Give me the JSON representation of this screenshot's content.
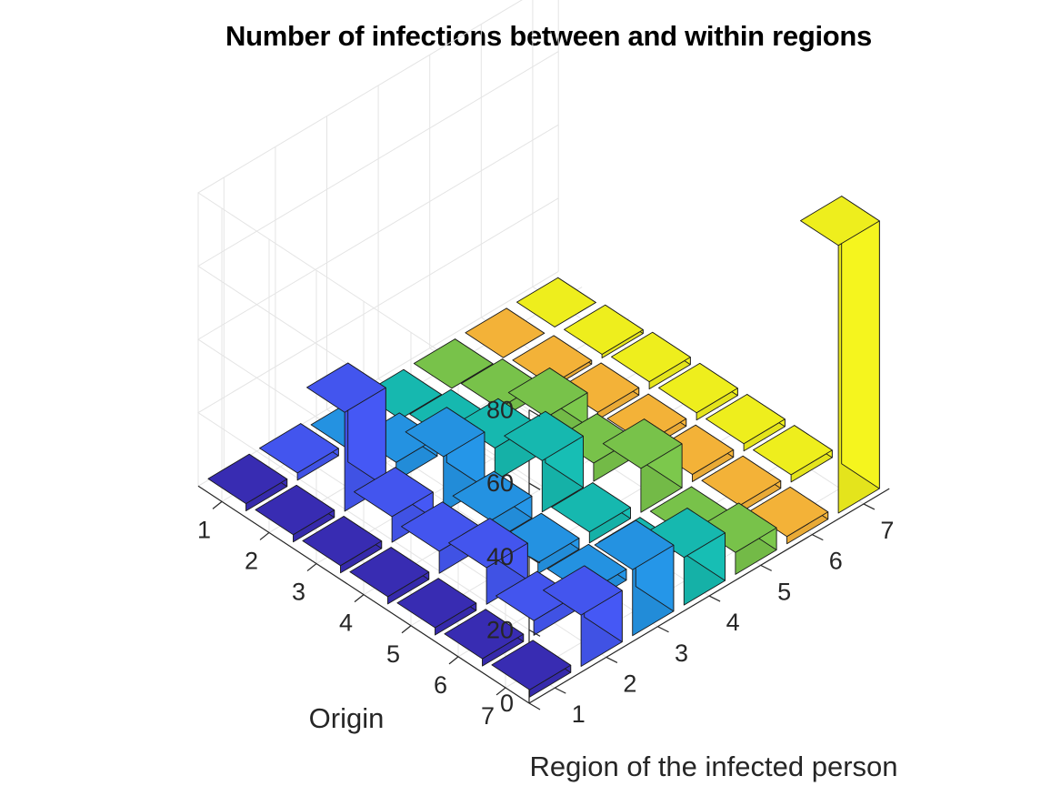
{
  "chart_data": {
    "type": "bar3",
    "title": "Number of infections between and within regions",
    "xlabel": "Region of the infected person",
    "ylabel": "Origin",
    "zlabel": "",
    "x_ticks": [
      "1",
      "2",
      "3",
      "4",
      "5",
      "6",
      "7"
    ],
    "y_ticks": [
      "1",
      "2",
      "3",
      "4",
      "5",
      "6",
      "7"
    ],
    "z_ticks": [
      "0",
      "20",
      "40",
      "60",
      "80"
    ],
    "zlim": [
      0,
      80
    ],
    "grid": true,
    "column_colors": [
      "#3A2DB8",
      "#4558F5",
      "#2596E8",
      "#17BEB4",
      "#7CC84C",
      "#FAB73A",
      "#F5F51E"
    ],
    "values": [
      [
        2,
        2,
        0,
        0,
        0,
        0,
        0
      ],
      [
        2,
        27,
        5,
        3,
        3,
        1,
        1
      ],
      [
        2,
        7,
        15,
        9,
        9,
        2,
        2
      ],
      [
        2,
        6,
        6,
        14,
        5,
        2,
        2
      ],
      [
        2,
        10,
        3,
        3,
        12,
        2,
        2
      ],
      [
        2,
        4,
        3,
        2,
        2,
        2,
        2
      ],
      [
        2,
        14,
        18,
        13,
        6,
        2,
        73
      ]
    ]
  }
}
